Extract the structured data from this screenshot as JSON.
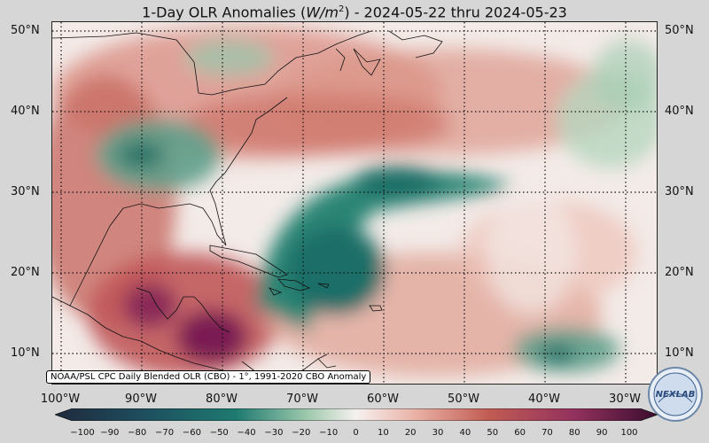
{
  "title": {
    "prefix": "1-Day OLR Anomalies (",
    "unit_base": "W/m",
    "unit_exp": "2",
    "suffix": ") - 2024-05-22 thru 2024-05-23"
  },
  "map": {
    "lat_labels": [
      "50°N",
      "40°N",
      "30°N",
      "20°N",
      "10°N"
    ],
    "lon_labels": [
      "100°W",
      "90°W",
      "80°W",
      "70°W",
      "60°W",
      "50°W",
      "40°W",
      "30°W"
    ],
    "gridlines": true,
    "gridline_style": "dotted"
  },
  "credit": "NOAA/PSL CPC Daily Blended OLR (CBO) - 1°, 1991-2020 CBO Anomaly",
  "colorbar": {
    "ticks": [
      "−100",
      "−90",
      "−80",
      "−70",
      "−60",
      "−50",
      "−40",
      "−30",
      "−20",
      "−10",
      "0",
      "10",
      "20",
      "30",
      "40",
      "50",
      "60",
      "70",
      "80",
      "90",
      "100"
    ],
    "min": -100,
    "max": 100,
    "colors": {
      "strong_negative": "#1f3a4d",
      "negative": "#1e7a70",
      "weak_negative": "#9fc9ad",
      "neutral": "#f6f1ef",
      "weak_positive": "#e9b0a4",
      "positive": "#c15b53",
      "strong_positive": "#6e1a4c"
    }
  },
  "logo": {
    "text": "NEXLAB"
  }
}
